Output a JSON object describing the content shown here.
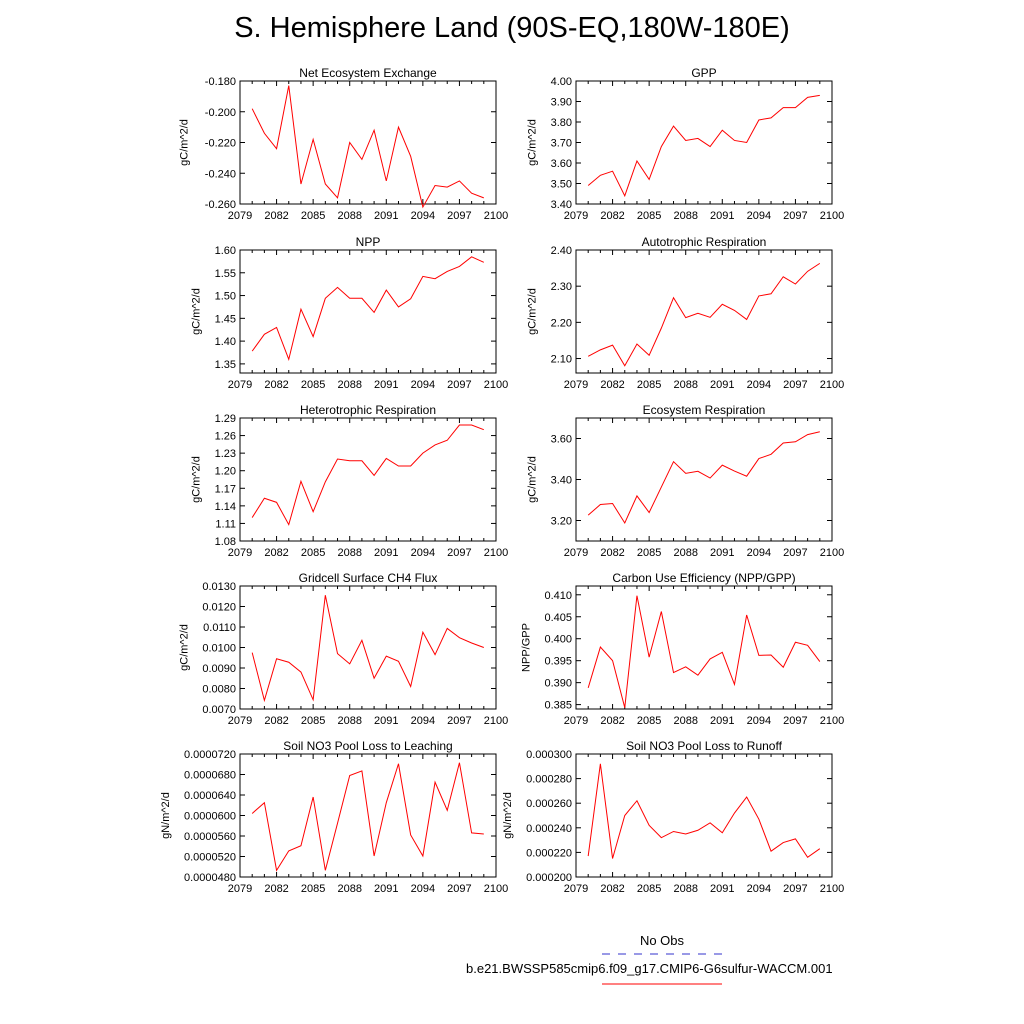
{
  "title": "S. Hemisphere Land (90S-EQ,180W-180E)",
  "legend": {
    "obs_label": "No Obs",
    "obs_color": "#3333cc",
    "case_label": "b.e21.BWSSP585cmip6.f09_g17.CMIP6-G6sulfur-WACCM.001",
    "case_color": "#ff0000"
  },
  "chart_data": [
    {
      "type": "line",
      "title": "Net Ecosystem Exchange",
      "ylabel": "gC/m^2/d",
      "xlim": [
        2079,
        2100
      ],
      "xticks": [
        "2079",
        "2082",
        "2085",
        "2088",
        "2091",
        "2094",
        "2097",
        "2100"
      ],
      "ylim": [
        -0.26,
        -0.18
      ],
      "yticks": [
        "-0.180",
        "-0.200",
        "-0.220",
        "-0.240",
        "-0.260"
      ],
      "ytick_values": [
        -0.18,
        -0.2,
        -0.22,
        -0.24,
        -0.26
      ],
      "x": [
        2080,
        2081,
        2082,
        2083,
        2084,
        2085,
        2086,
        2087,
        2088,
        2089,
        2090,
        2091,
        2092,
        2093,
        2094,
        2095,
        2096,
        2097,
        2098,
        2099
      ],
      "values": [
        -0.198,
        -0.214,
        -0.224,
        -0.183,
        -0.247,
        -0.218,
        -0.247,
        -0.256,
        -0.22,
        -0.231,
        -0.212,
        -0.245,
        -0.21,
        -0.229,
        -0.262,
        -0.248,
        -0.249,
        -0.245,
        -0.253,
        -0.256
      ]
    },
    {
      "type": "line",
      "title": "GPP",
      "ylabel": "gC/m^2/d",
      "xlim": [
        2079,
        2100
      ],
      "xticks": [
        "2079",
        "2082",
        "2085",
        "2088",
        "2091",
        "2094",
        "2097",
        "2100"
      ],
      "ylim": [
        3.4,
        4.0
      ],
      "yticks": [
        "4.00",
        "3.90",
        "3.80",
        "3.70",
        "3.60",
        "3.50",
        "3.40"
      ],
      "ytick_values": [
        4.0,
        3.9,
        3.8,
        3.7,
        3.6,
        3.5,
        3.4
      ],
      "x": [
        2080,
        2081,
        2082,
        2083,
        2084,
        2085,
        2086,
        2087,
        2088,
        2089,
        2090,
        2091,
        2092,
        2093,
        2094,
        2095,
        2096,
        2097,
        2098,
        2099
      ],
      "values": [
        3.49,
        3.54,
        3.56,
        3.44,
        3.61,
        3.52,
        3.68,
        3.78,
        3.71,
        3.72,
        3.68,
        3.76,
        3.71,
        3.7,
        3.81,
        3.82,
        3.87,
        3.87,
        3.92,
        3.93
      ]
    },
    {
      "type": "line",
      "title": "NPP",
      "ylabel": "gC/m^2/d",
      "xlim": [
        2079,
        2100
      ],
      "xticks": [
        "2079",
        "2082",
        "2085",
        "2088",
        "2091",
        "2094",
        "2097",
        "2100"
      ],
      "ylim": [
        1.33,
        1.6
      ],
      "yticks": [
        "1.60",
        "1.55",
        "1.50",
        "1.45",
        "1.40",
        "1.35"
      ],
      "ytick_values": [
        1.6,
        1.55,
        1.5,
        1.45,
        1.4,
        1.35
      ],
      "x": [
        2080,
        2081,
        2082,
        2083,
        2084,
        2085,
        2086,
        2087,
        2088,
        2089,
        2090,
        2091,
        2092,
        2093,
        2094,
        2095,
        2096,
        2097,
        2098,
        2099
      ],
      "values": [
        1.378,
        1.415,
        1.43,
        1.36,
        1.47,
        1.41,
        1.494,
        1.518,
        1.494,
        1.494,
        1.463,
        1.512,
        1.475,
        1.493,
        1.542,
        1.537,
        1.553,
        1.564,
        1.585,
        1.573
      ]
    },
    {
      "type": "line",
      "title": "Autotrophic Respiration",
      "ylabel": "gC/m^2/d",
      "xlim": [
        2079,
        2100
      ],
      "xticks": [
        "2079",
        "2082",
        "2085",
        "2088",
        "2091",
        "2094",
        "2097",
        "2100"
      ],
      "ylim": [
        2.06,
        2.4
      ],
      "yticks": [
        "2.40",
        "2.30",
        "2.20",
        "2.10"
      ],
      "ytick_values": [
        2.4,
        2.3,
        2.2,
        2.1
      ],
      "x": [
        2080,
        2081,
        2082,
        2083,
        2084,
        2085,
        2086,
        2087,
        2088,
        2089,
        2090,
        2091,
        2092,
        2093,
        2094,
        2095,
        2096,
        2097,
        2098,
        2099
      ],
      "values": [
        2.106,
        2.124,
        2.137,
        2.08,
        2.14,
        2.109,
        2.184,
        2.268,
        2.213,
        2.225,
        2.214,
        2.25,
        2.233,
        2.208,
        2.273,
        2.279,
        2.326,
        2.306,
        2.341,
        2.363
      ]
    },
    {
      "type": "line",
      "title": "Heterotrophic Respiration",
      "ylabel": "gC/m^2/d",
      "xlim": [
        2079,
        2100
      ],
      "xticks": [
        "2079",
        "2082",
        "2085",
        "2088",
        "2091",
        "2094",
        "2097",
        "2100"
      ],
      "ylim": [
        1.08,
        1.29
      ],
      "yticks": [
        "1.29",
        "1.26",
        "1.23",
        "1.20",
        "1.17",
        "1.14",
        "1.11",
        "1.08"
      ],
      "ytick_values": [
        1.29,
        1.26,
        1.23,
        1.2,
        1.17,
        1.14,
        1.11,
        1.08
      ],
      "x": [
        2080,
        2081,
        2082,
        2083,
        2084,
        2085,
        2086,
        2087,
        2088,
        2089,
        2090,
        2091,
        2092,
        2093,
        2094,
        2095,
        2096,
        2097,
        2098,
        2099
      ],
      "values": [
        1.12,
        1.153,
        1.146,
        1.108,
        1.182,
        1.13,
        1.181,
        1.22,
        1.217,
        1.217,
        1.192,
        1.221,
        1.208,
        1.208,
        1.23,
        1.244,
        1.252,
        1.278,
        1.278,
        1.27
      ]
    },
    {
      "type": "line",
      "title": "Ecosystem Respiration",
      "ylabel": "gC/m^2/d",
      "xlim": [
        2079,
        2100
      ],
      "xticks": [
        "2079",
        "2082",
        "2085",
        "2088",
        "2091",
        "2094",
        "2097",
        "2100"
      ],
      "ylim": [
        3.1,
        3.7
      ],
      "yticks": [
        "3.60",
        "3.40",
        "3.20"
      ],
      "ytick_values": [
        3.6,
        3.4,
        3.2
      ],
      "x": [
        2080,
        2081,
        2082,
        2083,
        2084,
        2085,
        2086,
        2087,
        2088,
        2089,
        2090,
        2091,
        2092,
        2093,
        2094,
        2095,
        2096,
        2097,
        2098,
        2099
      ],
      "values": [
        3.226,
        3.278,
        3.283,
        3.188,
        3.32,
        3.239,
        3.363,
        3.487,
        3.43,
        3.44,
        3.407,
        3.47,
        3.441,
        3.416,
        3.502,
        3.523,
        3.578,
        3.584,
        3.619,
        3.633
      ]
    },
    {
      "type": "line",
      "title": "Gridcell Surface CH4 Flux",
      "ylabel": "gC/m^2/d",
      "xlim": [
        2079,
        2100
      ],
      "xticks": [
        "2079",
        "2082",
        "2085",
        "2088",
        "2091",
        "2094",
        "2097",
        "2100"
      ],
      "ylim": [
        0.007,
        0.013
      ],
      "yticks": [
        "0.0130",
        "0.0120",
        "0.0110",
        "0.0100",
        "0.0090",
        "0.0080",
        "0.0070"
      ],
      "ytick_values": [
        0.013,
        0.012,
        0.011,
        0.01,
        0.009,
        0.008,
        0.007
      ],
      "x": [
        2080,
        2081,
        2082,
        2083,
        2084,
        2085,
        2086,
        2087,
        2088,
        2089,
        2090,
        2091,
        2092,
        2093,
        2094,
        2095,
        2096,
        2097,
        2098,
        2099
      ],
      "values": [
        0.00975,
        0.00742,
        0.00945,
        0.00928,
        0.0088,
        0.00745,
        0.01255,
        0.0097,
        0.0092,
        0.01035,
        0.0085,
        0.00958,
        0.00933,
        0.0081,
        0.01075,
        0.00965,
        0.01093,
        0.01048,
        0.01022,
        0.01
      ]
    },
    {
      "type": "line",
      "title": "Carbon Use Efficiency (NPP/GPP)",
      "ylabel": "NPP/GPP",
      "xlim": [
        2079,
        2100
      ],
      "xticks": [
        "2079",
        "2082",
        "2085",
        "2088",
        "2091",
        "2094",
        "2097",
        "2100"
      ],
      "ylim": [
        0.384,
        0.412
      ],
      "yticks": [
        "0.410",
        "0.405",
        "0.400",
        "0.395",
        "0.390",
        "0.385"
      ],
      "ytick_values": [
        0.41,
        0.405,
        0.4,
        0.395,
        0.39,
        0.385
      ],
      "x": [
        2080,
        2081,
        2082,
        2083,
        2084,
        2085,
        2086,
        2087,
        2088,
        2089,
        2090,
        2091,
        2092,
        2093,
        2094,
        2095,
        2096,
        2097,
        2098,
        2099
      ],
      "values": [
        0.3888,
        0.3981,
        0.395,
        0.3843,
        0.4098,
        0.3958,
        0.4062,
        0.3923,
        0.3936,
        0.3917,
        0.3954,
        0.3969,
        0.3896,
        0.4054,
        0.3962,
        0.3963,
        0.3935,
        0.3992,
        0.3985,
        0.3948
      ]
    },
    {
      "type": "line",
      "title": "Soil NO3 Pool Loss to Leaching",
      "ylabel": "gN/m^2/d",
      "xlim": [
        2079,
        2100
      ],
      "xticks": [
        "2079",
        "2082",
        "2085",
        "2088",
        "2091",
        "2094",
        "2097",
        "2100"
      ],
      "ylim": [
        4.8e-05,
        7.2e-05
      ],
      "yticks": [
        "0.0000720",
        "0.0000680",
        "0.0000640",
        "0.0000600",
        "0.0000560",
        "0.0000520",
        "0.0000480"
      ],
      "ytick_values": [
        7.2e-05,
        6.8e-05,
        6.4e-05,
        6e-05,
        5.6e-05,
        5.2e-05,
        4.8e-05
      ],
      "x": [
        2080,
        2081,
        2082,
        2083,
        2084,
        2085,
        2086,
        2087,
        2088,
        2089,
        2090,
        2091,
        2092,
        2093,
        2094,
        2095,
        2096,
        2097,
        2098,
        2099
      ],
      "values": [
        6.04e-05,
        6.25e-05,
        4.93e-05,
        5.31e-05,
        5.41e-05,
        6.36e-05,
        4.93e-05,
        5.85e-05,
        6.78e-05,
        6.87e-05,
        5.21e-05,
        6.25e-05,
        7.01e-05,
        5.62e-05,
        5.21e-05,
        6.65e-05,
        6.1e-05,
        7.03e-05,
        5.66e-05,
        5.64e-05
      ]
    },
    {
      "type": "line",
      "title": "Soil NO3 Pool Loss to Runoff",
      "ylabel": "gN/m^2/d",
      "xlim": [
        2079,
        2100
      ],
      "xticks": [
        "2079",
        "2082",
        "2085",
        "2088",
        "2091",
        "2094",
        "2097",
        "2100"
      ],
      "ylim": [
        0.0002,
        0.0003
      ],
      "yticks": [
        "0.000300",
        "0.000280",
        "0.000260",
        "0.000240",
        "0.000220",
        "0.000200"
      ],
      "ytick_values": [
        0.0003,
        0.00028,
        0.00026,
        0.00024,
        0.00022,
        0.0002
      ],
      "x": [
        2080,
        2081,
        2082,
        2083,
        2084,
        2085,
        2086,
        2087,
        2088,
        2089,
        2090,
        2091,
        2092,
        2093,
        2094,
        2095,
        2096,
        2097,
        2098,
        2099
      ],
      "values": [
        0.000217,
        0.000292,
        0.000215,
        0.00025,
        0.000262,
        0.000242,
        0.000232,
        0.000237,
        0.000235,
        0.000238,
        0.000244,
        0.000236,
        0.000252,
        0.000265,
        0.000247,
        0.000221,
        0.000228,
        0.000231,
        0.000216,
        0.000223
      ]
    }
  ]
}
